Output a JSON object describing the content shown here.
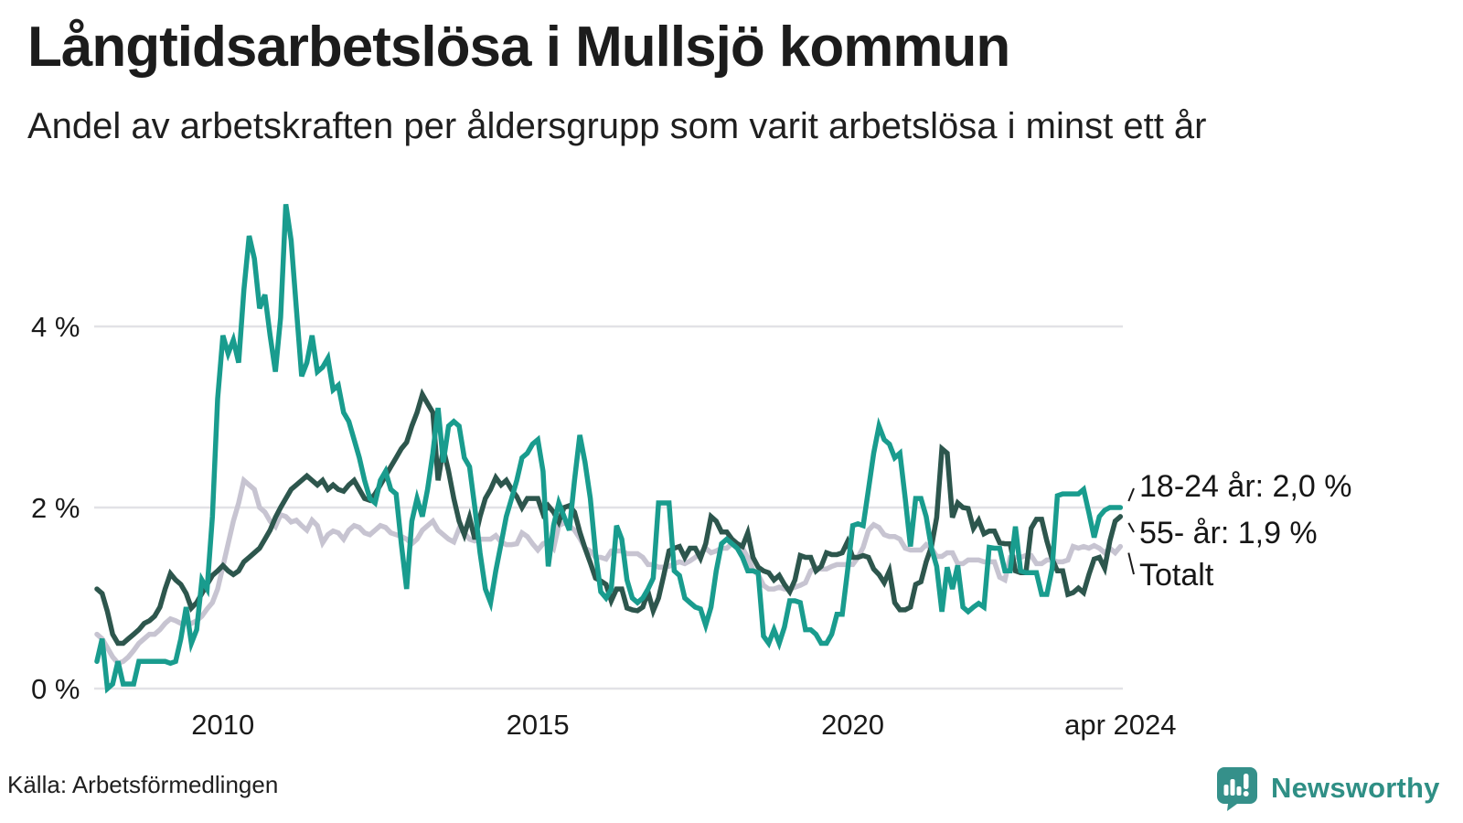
{
  "header": {
    "title": "Långtidsarbetslösa i Mullsjö kommun",
    "subtitle": "Andel av arbetskraften per åldersgrupp som varit arbetslösa i minst ett år"
  },
  "footer": {
    "source": "Källa: Arbetsförmedlingen",
    "brand": "Newsworthy"
  },
  "colors": {
    "series_18_24": "#199c8e",
    "series_55": "#2d564d",
    "series_total": "#c7c4d1",
    "gridline": "#e2e2e6",
    "text": "#1a1a1a",
    "connector": "#1a1a1a",
    "brand_teal": "#35908a"
  },
  "chart_data": {
    "type": "line",
    "title": "Långtidsarbetslösa i Mullsjö kommun",
    "subtitle": "Andel av arbetskraften per åldersgrupp som varit arbetslösa i minst ett år",
    "x_unit": "month",
    "x_start": "2008-01",
    "x_end": "2024-04",
    "ylabel": "",
    "xlabel": "",
    "ylim": [
      0,
      5.6
    ],
    "grid": "horizontal",
    "legend_position": "right-annotations",
    "yticks": [
      {
        "value": 0,
        "label": "0 %"
      },
      {
        "value": 2,
        "label": "2 %"
      },
      {
        "value": 4,
        "label": "4 %"
      }
    ],
    "xticks": [
      {
        "month_index": 24,
        "label": "2010"
      },
      {
        "month_index": 84,
        "label": "2015"
      },
      {
        "month_index": 144,
        "label": "2020"
      },
      {
        "month_index": 195,
        "label": "apr 2024"
      }
    ],
    "series": [
      {
        "name": "18-24 år",
        "annotation": "18-24 år: 2,0 %",
        "last_value_label": "2,0 %",
        "color": "#199c8e",
        "values": [
          0.3,
          0.55,
          0.0,
          0.05,
          0.3,
          0.05,
          0.05,
          0.05,
          0.3,
          0.3,
          0.3,
          0.3,
          0.3,
          0.3,
          0.28,
          0.3,
          0.55,
          0.9,
          0.5,
          0.65,
          1.2,
          1.1,
          1.9,
          3.2,
          3.9,
          3.7,
          3.85,
          3.6,
          4.4,
          5.0,
          4.75,
          4.2,
          4.35,
          3.9,
          3.5,
          4.1,
          5.35,
          4.95,
          4.2,
          3.45,
          3.6,
          3.9,
          3.5,
          3.55,
          3.65,
          3.3,
          3.35,
          3.05,
          2.95,
          2.75,
          2.55,
          2.3,
          2.1,
          2.05,
          2.3,
          2.4,
          2.2,
          2.15,
          1.6,
          1.1,
          1.85,
          2.1,
          1.9,
          2.2,
          2.6,
          3.1,
          2.5,
          2.9,
          2.95,
          2.9,
          2.55,
          2.45,
          2.0,
          1.5,
          1.1,
          0.95,
          1.3,
          1.6,
          1.9,
          2.1,
          2.3,
          2.55,
          2.6,
          2.7,
          2.75,
          2.4,
          1.35,
          1.8,
          2.05,
          1.9,
          1.75,
          2.3,
          2.8,
          2.5,
          2.1,
          1.5,
          1.07,
          1.0,
          1.1,
          1.8,
          1.65,
          1.2,
          1.0,
          0.95,
          1.0,
          1.1,
          1.22,
          2.05,
          2.05,
          2.05,
          1.3,
          1.25,
          1.0,
          0.95,
          0.9,
          0.88,
          0.7,
          0.9,
          1.3,
          1.6,
          1.65,
          1.6,
          1.55,
          1.45,
          1.3,
          1.3,
          1.28,
          0.58,
          0.5,
          0.65,
          0.5,
          0.68,
          0.97,
          0.97,
          0.95,
          0.65,
          0.65,
          0.6,
          0.5,
          0.5,
          0.6,
          0.82,
          0.82,
          1.29,
          1.8,
          1.82,
          1.8,
          2.2,
          2.6,
          2.9,
          2.75,
          2.7,
          2.55,
          2.6,
          2.1,
          1.57,
          2.1,
          2.1,
          1.9,
          1.55,
          1.35,
          0.85,
          1.34,
          1.1,
          1.36,
          0.9,
          0.85,
          0.9,
          0.94,
          0.9,
          1.56,
          1.55,
          1.55,
          1.3,
          1.3,
          1.79,
          1.3,
          1.28,
          1.28,
          1.28,
          1.04,
          1.04,
          1.33,
          2.13,
          2.15,
          2.15,
          2.15,
          2.15,
          2.2,
          1.94,
          1.67,
          1.9,
          1.97,
          2.0,
          2.0,
          2.0
        ]
      },
      {
        "name": "55- år",
        "annotation": "55- år: 1,9 %",
        "last_value_label": "1,9 %",
        "color": "#2d564d",
        "values": [
          1.1,
          1.05,
          0.85,
          0.6,
          0.5,
          0.5,
          0.55,
          0.6,
          0.65,
          0.72,
          0.75,
          0.8,
          0.9,
          1.1,
          1.27,
          1.2,
          1.15,
          1.05,
          0.89,
          0.95,
          1.05,
          1.15,
          1.25,
          1.3,
          1.36,
          1.3,
          1.26,
          1.3,
          1.4,
          1.45,
          1.5,
          1.55,
          1.65,
          1.75,
          1.89,
          2.0,
          2.1,
          2.2,
          2.25,
          2.3,
          2.35,
          2.3,
          2.25,
          2.3,
          2.2,
          2.25,
          2.2,
          2.18,
          2.25,
          2.3,
          2.2,
          2.1,
          2.08,
          2.15,
          2.25,
          2.35,
          2.45,
          2.55,
          2.65,
          2.72,
          2.9,
          3.05,
          3.25,
          3.15,
          3.05,
          2.3,
          2.65,
          2.4,
          2.1,
          1.85,
          1.7,
          1.89,
          1.65,
          1.9,
          2.1,
          2.2,
          2.33,
          2.25,
          2.3,
          2.2,
          2.12,
          2.0,
          2.1,
          2.1,
          2.1,
          1.93,
          2.02,
          1.95,
          1.84,
          2.0,
          2.02,
          1.95,
          1.73,
          1.55,
          1.39,
          1.22,
          1.19,
          1.15,
          0.97,
          1.1,
          1.1,
          0.89,
          0.87,
          0.86,
          0.9,
          1.07,
          0.86,
          1.0,
          1.25,
          1.52,
          1.55,
          1.57,
          1.45,
          1.55,
          1.55,
          1.44,
          1.6,
          1.9,
          1.85,
          1.73,
          1.73,
          1.65,
          1.6,
          1.57,
          1.72,
          1.45,
          1.34,
          1.3,
          1.28,
          1.2,
          1.25,
          1.15,
          1.07,
          1.2,
          1.47,
          1.45,
          1.45,
          1.3,
          1.35,
          1.5,
          1.48,
          1.48,
          1.5,
          1.62,
          1.45,
          1.45,
          1.47,
          1.45,
          1.32,
          1.26,
          1.17,
          1.3,
          0.95,
          0.87,
          0.87,
          0.9,
          1.15,
          1.18,
          1.4,
          1.57,
          1.89,
          2.65,
          2.6,
          1.89,
          2.05,
          2.0,
          1.99,
          1.77,
          1.86,
          1.71,
          1.74,
          1.74,
          1.61,
          1.6,
          1.6,
          1.3,
          1.28,
          1.28,
          1.77,
          1.87,
          1.87,
          1.63,
          1.43,
          1.3,
          1.3,
          1.04,
          1.06,
          1.11,
          1.06,
          1.26,
          1.43,
          1.45,
          1.33,
          1.63,
          1.85,
          1.9
        ]
      },
      {
        "name": "Totalt",
        "annotation": "Totalt",
        "last_value_label": "",
        "color": "#c7c4d1",
        "values": [
          0.6,
          0.55,
          0.45,
          0.35,
          0.28,
          0.3,
          0.35,
          0.42,
          0.5,
          0.55,
          0.6,
          0.6,
          0.65,
          0.72,
          0.77,
          0.75,
          0.72,
          0.72,
          0.72,
          0.75,
          0.8,
          0.88,
          0.95,
          1.1,
          1.35,
          1.6,
          1.85,
          2.05,
          2.3,
          2.25,
          2.2,
          2.0,
          1.95,
          1.85,
          1.79,
          1.92,
          1.9,
          1.84,
          1.86,
          1.8,
          1.75,
          1.86,
          1.8,
          1.61,
          1.7,
          1.74,
          1.72,
          1.65,
          1.75,
          1.8,
          1.78,
          1.72,
          1.7,
          1.75,
          1.8,
          1.78,
          1.72,
          1.7,
          1.68,
          1.65,
          1.6,
          1.65,
          1.75,
          1.8,
          1.85,
          1.75,
          1.7,
          1.65,
          1.62,
          1.77,
          1.72,
          1.65,
          1.63,
          1.65,
          1.65,
          1.65,
          1.69,
          1.62,
          1.59,
          1.59,
          1.6,
          1.72,
          1.68,
          1.6,
          1.53,
          1.6,
          1.62,
          1.55,
          1.8,
          1.83,
          1.8,
          1.75,
          1.66,
          1.55,
          1.52,
          1.45,
          1.45,
          1.43,
          1.52,
          1.52,
          1.52,
          1.49,
          1.49,
          1.49,
          1.45,
          1.37,
          1.37,
          1.34,
          1.34,
          1.35,
          1.38,
          1.4,
          1.38,
          1.41,
          1.45,
          1.5,
          1.55,
          1.5,
          1.52,
          1.55,
          1.55,
          1.6,
          1.58,
          1.55,
          1.45,
          1.31,
          1.26,
          1.14,
          1.1,
          1.1,
          1.12,
          1.1,
          1.1,
          1.12,
          1.14,
          1.17,
          1.3,
          1.34,
          1.32,
          1.32,
          1.35,
          1.37,
          1.37,
          1.37,
          1.37,
          1.45,
          1.56,
          1.75,
          1.81,
          1.78,
          1.7,
          1.68,
          1.68,
          1.65,
          1.55,
          1.53,
          1.53,
          1.53,
          1.59,
          1.55,
          1.46,
          1.46,
          1.5,
          1.5,
          1.38,
          1.38,
          1.42,
          1.42,
          1.42,
          1.4,
          1.4,
          1.4,
          1.23,
          1.2,
          1.45,
          1.45,
          1.45,
          1.47,
          1.47,
          1.38,
          1.38,
          1.42,
          1.42,
          1.4,
          1.4,
          1.42,
          1.57,
          1.55,
          1.57,
          1.55,
          1.58,
          1.55,
          1.5,
          1.55,
          1.5,
          1.57
        ]
      }
    ]
  }
}
